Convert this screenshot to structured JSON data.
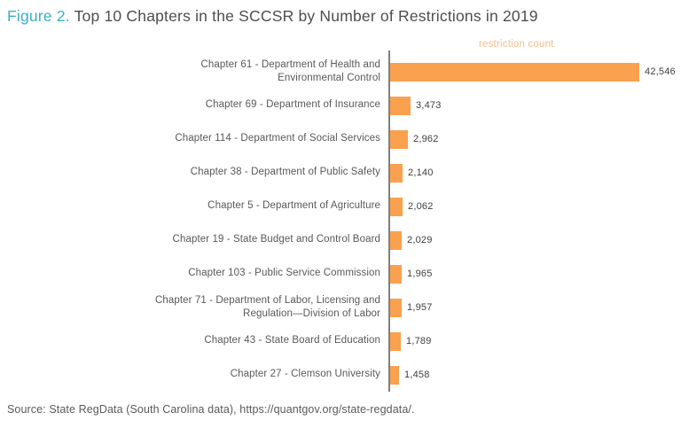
{
  "title": {
    "figure_label": "Figure 2.",
    "rest": " Top 10 Chapters in the SCCSR by Number of Restrictions in 2019"
  },
  "axis_title": "restriction count",
  "source": "Source: State RegData (South Carolina data), https://quantgov.org/state-regdata/.",
  "colors": {
    "bar": "#f9a14f",
    "axis_title": "#f6bd8c",
    "figure_label": "#3cafc0",
    "title_text": "#4d4e50",
    "category_label": "#58595b",
    "value_label": "#3f3f40",
    "axis_line": "#7f7f7f"
  },
  "chart_data": {
    "type": "bar",
    "orientation": "horizontal",
    "title": "Top 10 Chapters in the SCCSR by Number of Restrictions in 2019",
    "xlabel": "restriction count",
    "ylabel": "",
    "xlim": [
      0,
      43000
    ],
    "grid": false,
    "legend_position": "top-right-axis-title",
    "categories": [
      "Chapter 61 - Department of Health and Environmental Control",
      "Chapter 69 - Department of Insurance",
      "Chapter 114 - Department of Social Services",
      "Chapter 38 - Department of Public Safety",
      "Chapter 5 - Department of Agriculture",
      "Chapter 19 - State Budget and Control Board",
      "Chapter 103 - Public Service Commission",
      "Chapter 71 - Department of Labor, Licensing and Regulation—Division of Labor",
      "Chapter 43 - State Board of Education",
      "Chapter 27 - Clemson University"
    ],
    "values": [
      42546,
      3473,
      2962,
      2140,
      2062,
      2029,
      1965,
      1957,
      1789,
      1458
    ],
    "value_labels": [
      "42,546",
      "3,473",
      "2,962",
      "2,140",
      "2,062",
      "2,029",
      "1,965",
      "1,957",
      "1,789",
      "1,458"
    ]
  }
}
